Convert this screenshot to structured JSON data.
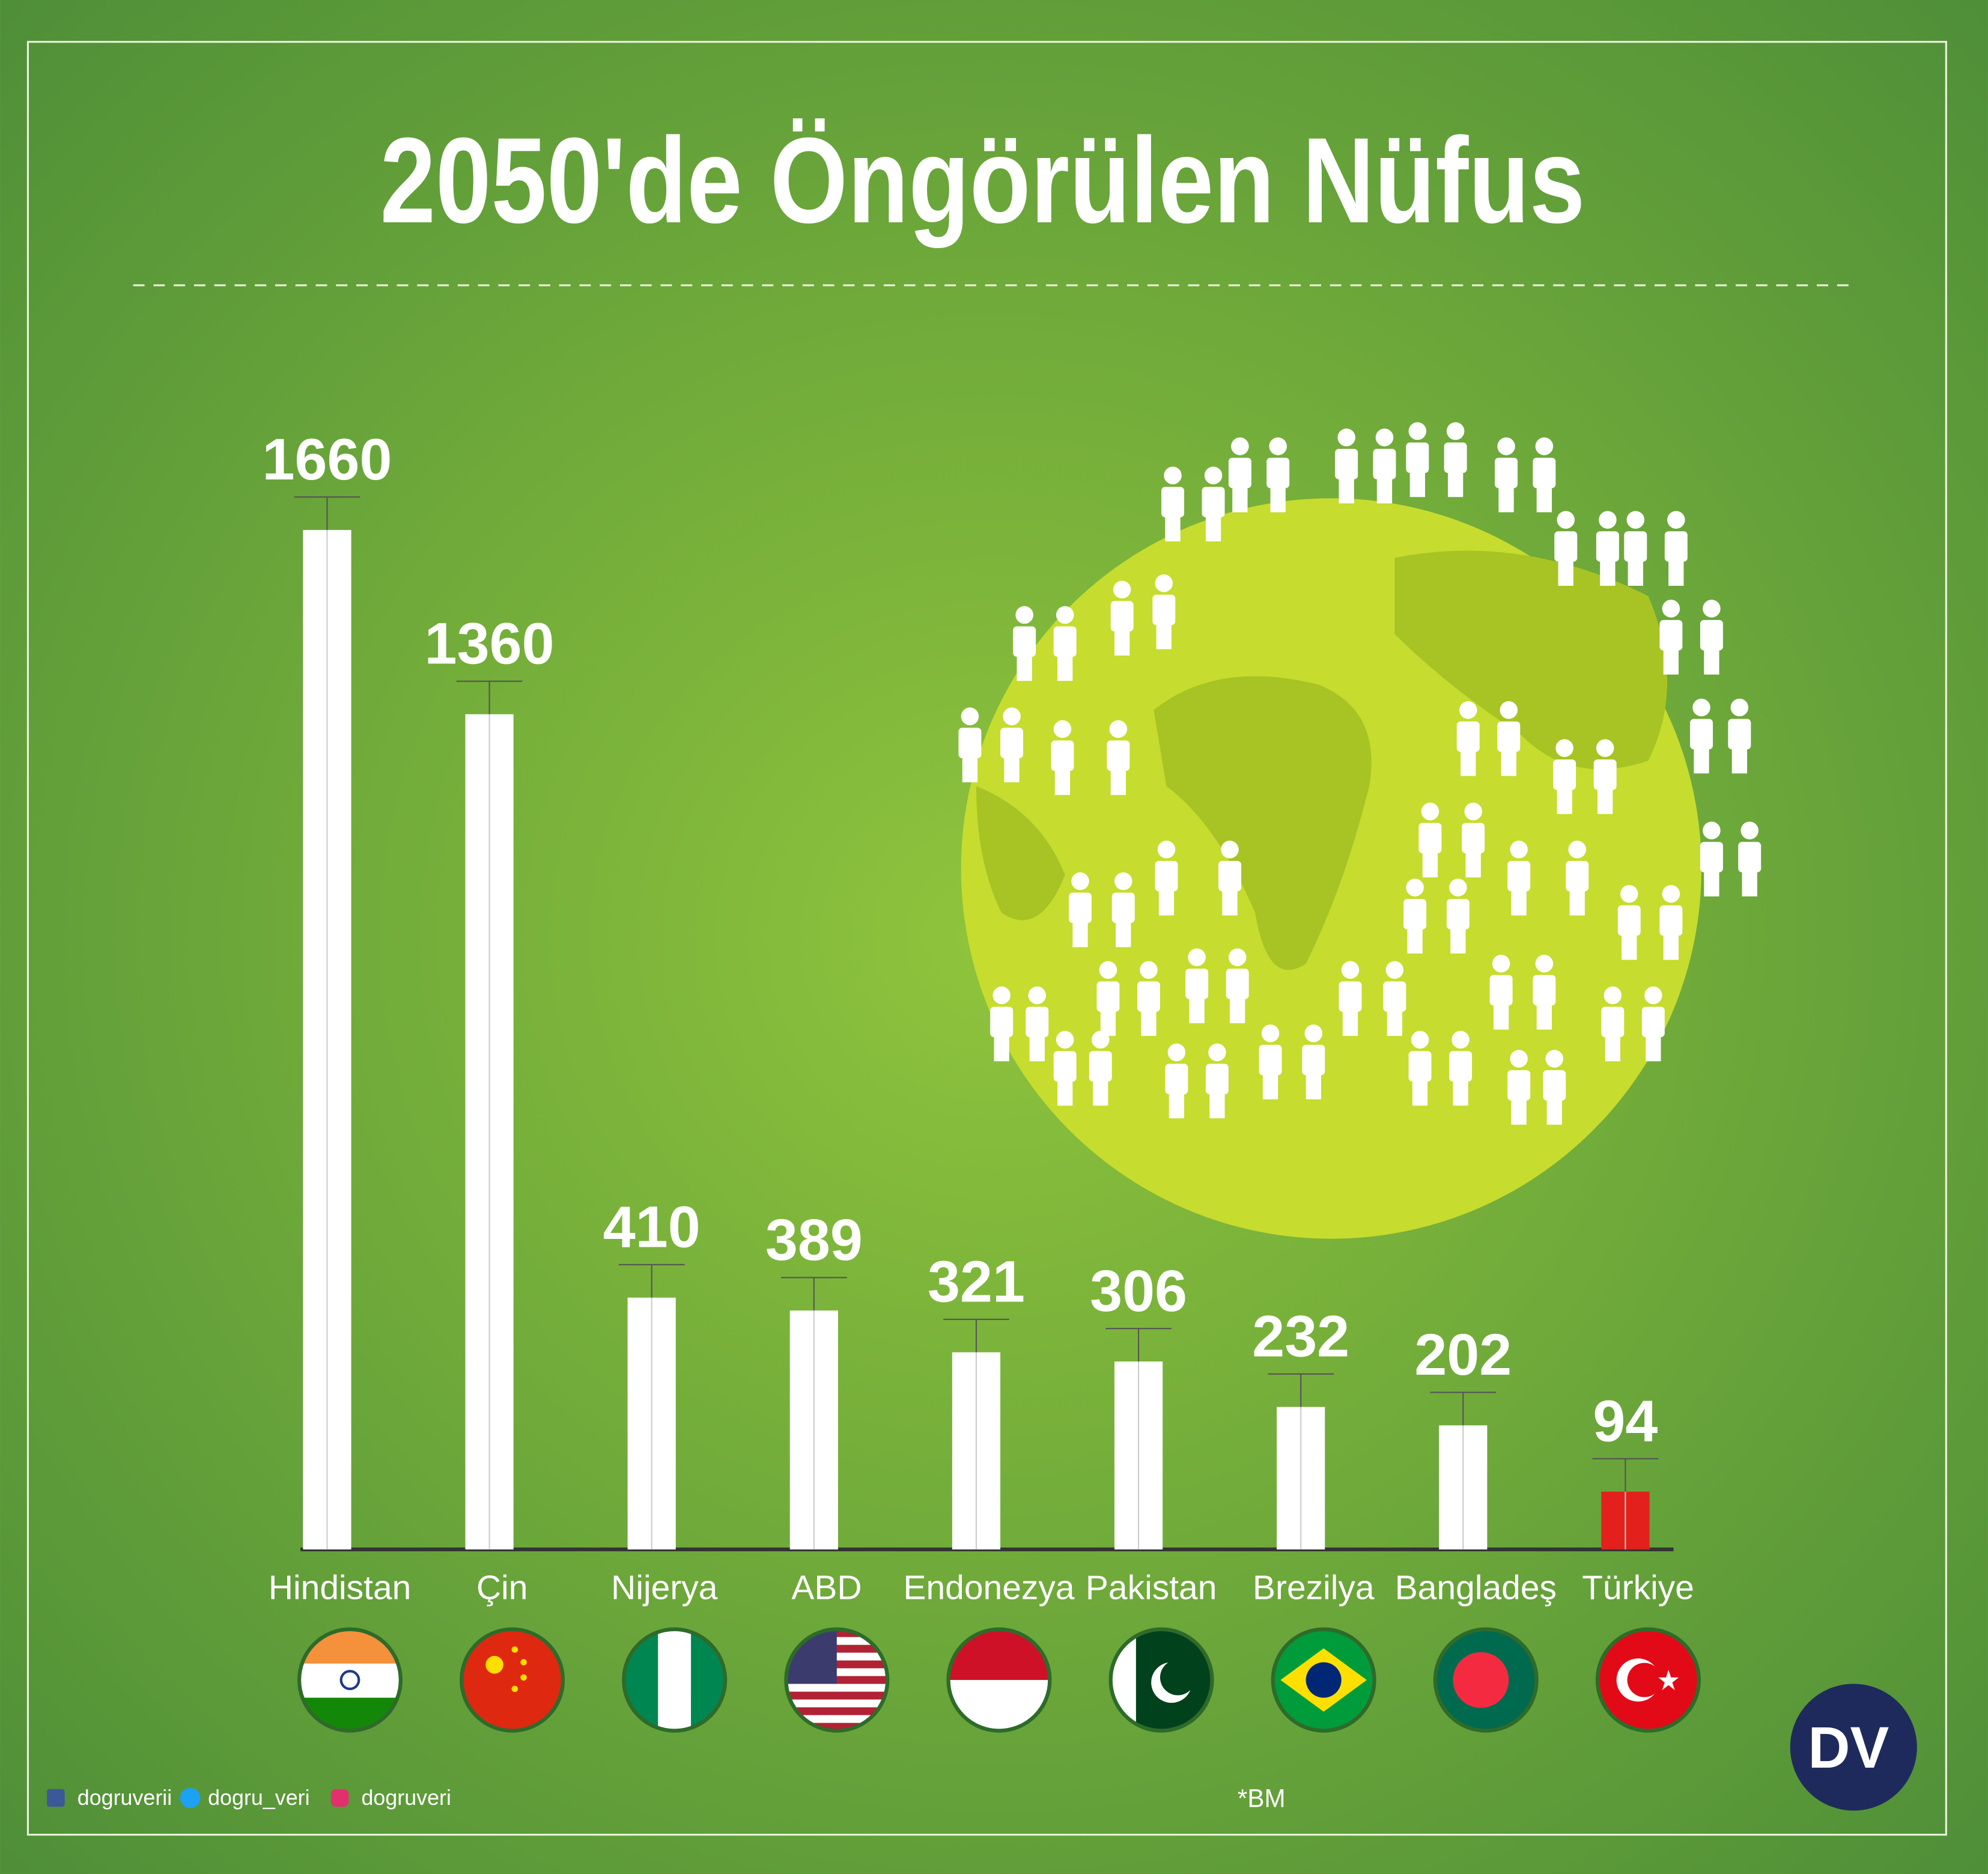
{
  "chart_data": {
    "type": "bar",
    "title": "2050'de Öngörülen Nüfus",
    "categories": [
      "Hindistan",
      "Çin",
      "Nijerya",
      "ABD",
      "Endonezya",
      "Pakistan",
      "Brezilya",
      "Bangladeş",
      "Türkiye"
    ],
    "values": [
      1660,
      1360,
      410,
      389,
      321,
      306,
      232,
      202,
      94
    ],
    "colors": [
      "#ffffff",
      "#ffffff",
      "#ffffff",
      "#ffffff",
      "#ffffff",
      "#ffffff",
      "#ffffff",
      "#ffffff",
      "#e3201b"
    ]
  },
  "footer": {
    "social": [
      "dogruverii",
      "dogru_veri",
      "dogruveri"
    ],
    "source": "*BM",
    "logo": "DV"
  }
}
